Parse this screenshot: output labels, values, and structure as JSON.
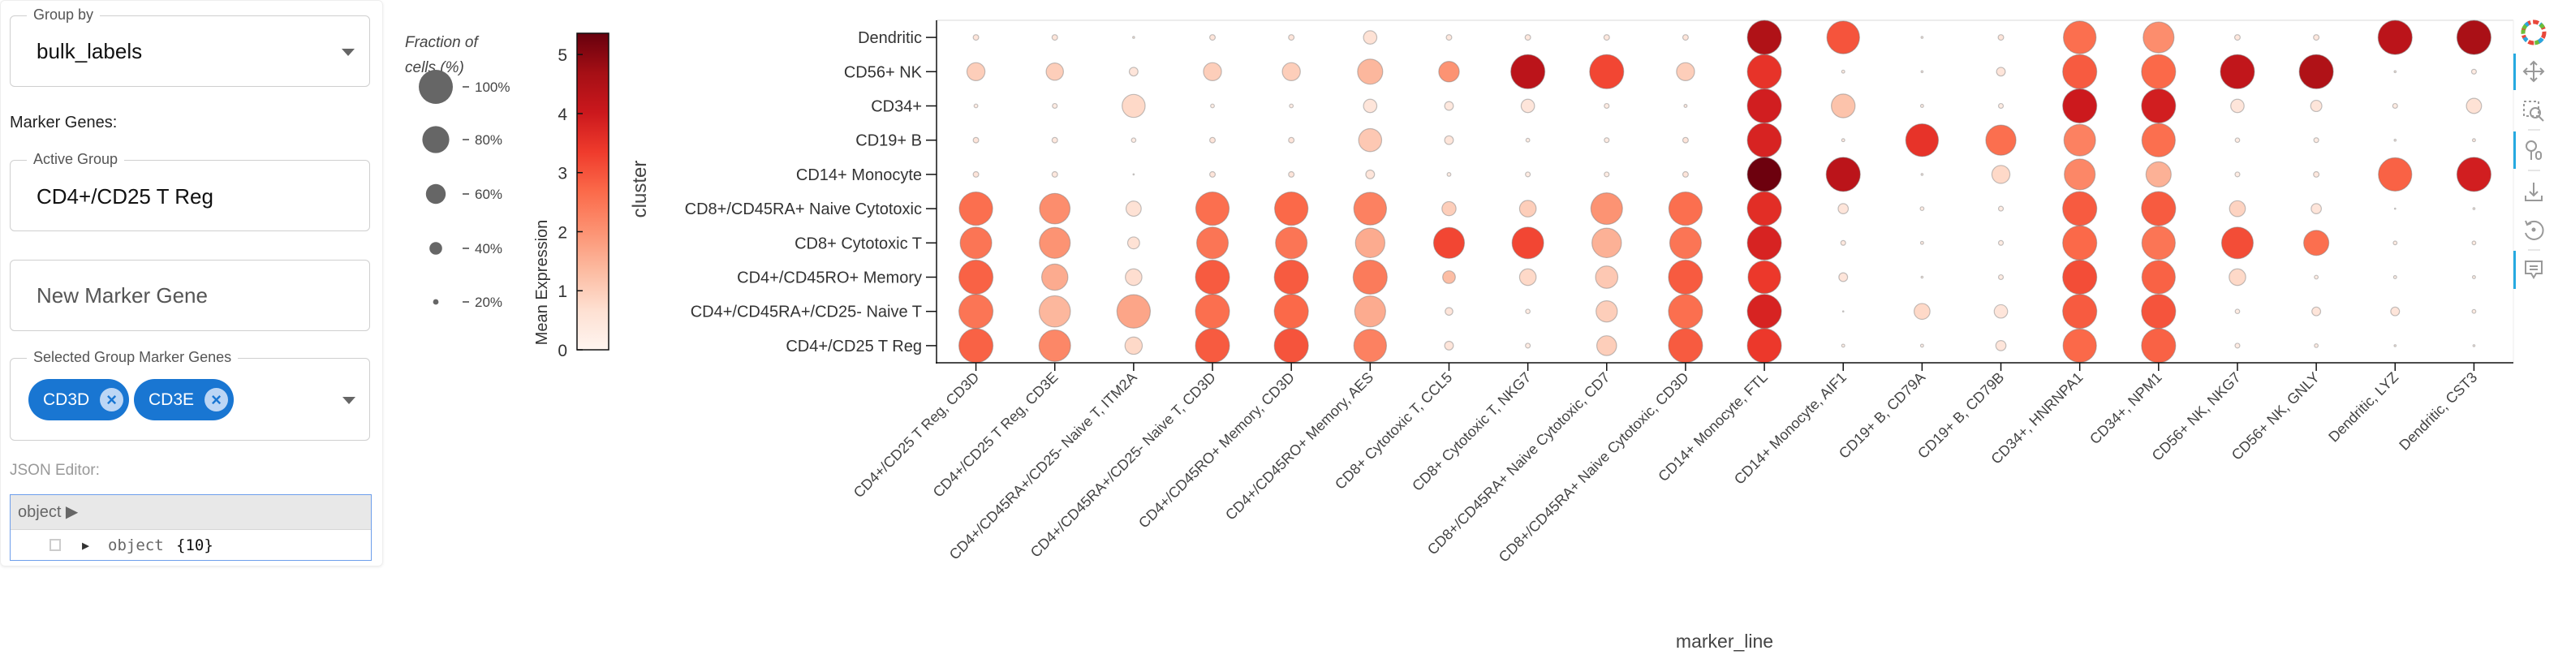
{
  "controls": {
    "group_by": {
      "label": "Group by",
      "value": "bulk_labels"
    },
    "marker_genes_heading": "Marker Genes:",
    "active_group": {
      "label": "Active Group",
      "value": "CD4+/CD25 T Reg"
    },
    "new_marker_gene": {
      "placeholder": "New Marker Gene"
    },
    "selected_markers": {
      "label": "Selected Group Marker Genes",
      "chips": [
        "CD3D",
        "CD3E"
      ]
    },
    "json_editor": {
      "label": "JSON Editor:",
      "header": "object ▶",
      "row_key": "object",
      "row_count": "{10}"
    }
  },
  "toolbar": {
    "icons": [
      "bokeh-logo-icon",
      "pan-icon",
      "box-zoom-icon",
      "wheel-zoom-icon",
      "save-icon",
      "reset-icon",
      "hover-icon"
    ],
    "active": [
      "pan-icon",
      "wheel-zoom-icon",
      "hover-icon"
    ],
    "accent": "#26aae1"
  },
  "chart_data": {
    "type": "scatter",
    "subtype": "dotplot",
    "xlabel": "marker_line",
    "ylabel": "cluster",
    "x_categories": [
      "CD4+/CD25 T Reg, CD3D",
      "CD4+/CD25 T Reg, CD3E",
      "CD4+/CD45RA+/CD25- Naive T, ITM2A",
      "CD4+/CD45RA+/CD25- Naive T, CD3D",
      "CD4+/CD45RO+ Memory, CD3D",
      "CD4+/CD45RO+ Memory, AES",
      "CD8+ Cytotoxic T, CCL5",
      "CD8+ Cytotoxic T, NKG7",
      "CD8+/CD45RA+ Naive Cytotoxic, CD7",
      "CD8+/CD45RA+ Naive Cytotoxic, CD3D",
      "CD14+ Monocyte, FTL",
      "CD14+ Monocyte, AIF1",
      "CD19+ B, CD79A",
      "CD19+ B, CD79B",
      "CD34+, HNRNPA1",
      "CD34+, NPM1",
      "CD56+ NK, NKG7",
      "CD56+ NK, GNLY",
      "Dendritic, LYZ",
      "Dendritic, CST3"
    ],
    "y_categories": [
      "Dendritic",
      "CD56+ NK",
      "CD34+",
      "CD19+ B",
      "CD14+ Monocyte",
      "CD8+/CD45RA+ Naive Cytotoxic",
      "CD8+ Cytotoxic T",
      "CD4+/CD45RO+ Memory",
      "CD4+/CD45RA+/CD25- Naive T",
      "CD4+/CD25 T Reg"
    ],
    "fraction_pct": [
      [
        20,
        20,
        10,
        20,
        20,
        42,
        20,
        20,
        20,
        20,
        100,
        96,
        10,
        20,
        96,
        91,
        20,
        20,
        100,
        100
      ],
      [
        55,
        53,
        29,
        55,
        55,
        75,
        62,
        100,
        100,
        55,
        100,
        13,
        10,
        29,
        100,
        100,
        100,
        100,
        10,
        18
      ],
      [
        15,
        18,
        69,
        15,
        15,
        42,
        29,
        42,
        18,
        13,
        100,
        71,
        13,
        18,
        100,
        100,
        42,
        36,
        18,
        47
      ],
      [
        20,
        20,
        17,
        20,
        20,
        69,
        29,
        15,
        18,
        20,
        100,
        13,
        96,
        89,
        93,
        98,
        17,
        18,
        10,
        13
      ],
      [
        20,
        20,
        8,
        20,
        20,
        29,
        15,
        18,
        18,
        20,
        100,
        100,
        10,
        55,
        91,
        75,
        18,
        20,
        98,
        100
      ],
      [
        98,
        90,
        47,
        98,
        98,
        96,
        44,
        51,
        93,
        98,
        100,
        33,
        15,
        18,
        100,
        100,
        49,
        33,
        8,
        10
      ],
      [
        93,
        91,
        38,
        93,
        93,
        87,
        91,
        93,
        87,
        93,
        100,
        18,
        13,
        18,
        100,
        98,
        93,
        75,
        15,
        15
      ],
      [
        100,
        78,
        51,
        100,
        100,
        100,
        40,
        51,
        67,
        100,
        96,
        29,
        10,
        18,
        100,
        98,
        51,
        15,
        13,
        13
      ],
      [
        100,
        92,
        98,
        100,
        100,
        91,
        26,
        17,
        64,
        100,
        100,
        5,
        49,
        42,
        100,
        100,
        17,
        29,
        29,
        15
      ],
      [
        100,
        93,
        53,
        100,
        100,
        96,
        29,
        18,
        60,
        100,
        100,
        13,
        13,
        33,
        98,
        100,
        18,
        15,
        10,
        10
      ]
    ],
    "mean_expression": [
      [
        0.5,
        0.5,
        0.3,
        0.5,
        0.5,
        0.6,
        0.4,
        0.4,
        0.4,
        0.5,
        4.5,
        3.0,
        0.2,
        0.5,
        2.6,
        2.1,
        0.4,
        0.4,
        4.3,
        4.6
      ],
      [
        1.0,
        1.0,
        0.5,
        1.0,
        1.0,
        1.4,
        2.0,
        4.3,
        3.2,
        1.0,
        3.5,
        0.3,
        0.2,
        0.5,
        2.9,
        2.7,
        4.2,
        4.5,
        0.2,
        0.3
      ],
      [
        0.3,
        0.3,
        0.8,
        0.3,
        0.3,
        0.5,
        0.4,
        0.5,
        0.3,
        0.3,
        3.9,
        1.2,
        0.2,
        0.3,
        4.0,
        3.9,
        0.5,
        0.5,
        0.3,
        0.6
      ],
      [
        0.5,
        0.4,
        0.3,
        0.5,
        0.5,
        1.1,
        0.5,
        0.3,
        0.3,
        0.5,
        3.8,
        0.3,
        3.5,
        2.6,
        2.3,
        2.6,
        0.3,
        0.3,
        0.2,
        0.3
      ],
      [
        0.5,
        0.4,
        0.2,
        0.5,
        0.5,
        0.5,
        0.3,
        0.3,
        0.3,
        0.5,
        5.3,
        4.3,
        0.2,
        0.8,
        2.2,
        1.5,
        0.3,
        0.4,
        2.8,
        3.9
      ],
      [
        2.6,
        2.1,
        0.6,
        2.6,
        2.7,
        2.3,
        1.0,
        1.0,
        2.0,
        2.6,
        3.6,
        0.5,
        0.3,
        0.3,
        2.9,
        2.9,
        0.9,
        0.5,
        0.2,
        0.2
      ],
      [
        2.5,
        2.0,
        0.6,
        2.5,
        2.5,
        1.6,
        3.2,
        3.2,
        1.5,
        2.5,
        3.8,
        0.4,
        0.3,
        0.3,
        2.7,
        2.5,
        3.1,
        2.6,
        0.3,
        0.3
      ],
      [
        2.8,
        1.6,
        0.7,
        2.9,
        2.9,
        2.4,
        1.3,
        0.8,
        1.1,
        2.9,
        3.4,
        0.5,
        0.2,
        0.3,
        3.1,
        2.8,
        0.8,
        0.3,
        0.2,
        0.2
      ],
      [
        2.5,
        1.4,
        1.7,
        2.6,
        2.7,
        1.6,
        0.5,
        0.3,
        1.0,
        2.6,
        3.8,
        0.1,
        0.8,
        0.5,
        2.9,
        3.0,
        0.3,
        0.5,
        0.5,
        0.3
      ],
      [
        2.8,
        2.2,
        0.8,
        2.9,
        3.0,
        2.3,
        0.5,
        0.3,
        1.0,
        2.9,
        3.4,
        0.2,
        0.2,
        0.5,
        2.7,
        2.8,
        0.3,
        0.3,
        0.2,
        0.2
      ]
    ],
    "size_legend": {
      "title_line1": "Fraction of",
      "title_line2": "cells (%)",
      "entries": [
        "100%",
        "80%",
        "60%",
        "40%",
        "20%"
      ],
      "values": [
        100,
        80,
        60,
        40,
        20
      ],
      "marker_color": "#666666"
    },
    "colorbar": {
      "title": "Mean Expression",
      "palette": "Reds",
      "range": [
        0,
        5.36
      ],
      "ticks": [
        "0",
        "1",
        "2",
        "3",
        "4",
        "5"
      ],
      "stops": [
        "#fff5f0",
        "#fee0d2",
        "#fcbba1",
        "#fc9272",
        "#fb6a4a",
        "#ef3b2c",
        "#cb181d",
        "#a50f15",
        "#67000d"
      ]
    },
    "grid": false
  }
}
